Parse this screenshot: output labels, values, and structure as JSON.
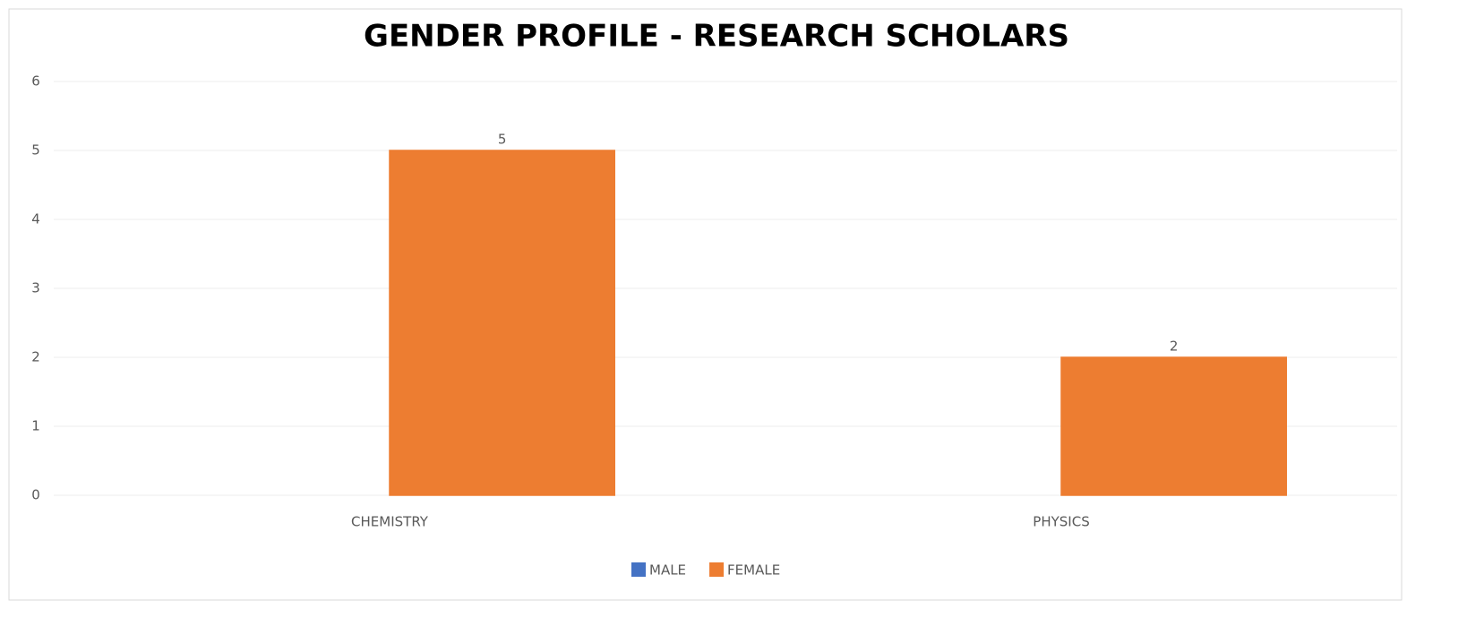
{
  "chart_data": {
    "type": "bar",
    "title": "GENDER PROFILE - RESEARCH SCHOLARS",
    "categories": [
      "CHEMISTRY",
      "PHYSICS"
    ],
    "series": [
      {
        "name": "MALE",
        "color": "#4472c4",
        "values": [
          0,
          0
        ],
        "data_labels": false
      },
      {
        "name": "FEMALE",
        "color": "#ed7d31",
        "values": [
          5,
          2
        ],
        "data_labels": true
      }
    ],
    "ylim": [
      0,
      6
    ],
    "yticks": [
      0,
      1,
      2,
      3,
      4,
      5,
      6
    ],
    "grid": true,
    "legend": "bottom"
  }
}
